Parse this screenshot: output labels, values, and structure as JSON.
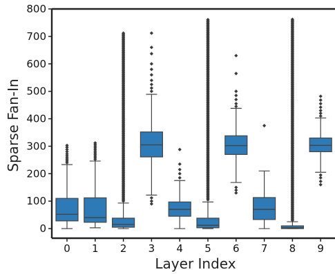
{
  "chart_data": {
    "type": "box",
    "xlabel": "Layer Index",
    "ylabel": "Sparse Fan-In",
    "ylim": [
      -35,
      800
    ],
    "yticks": [
      0,
      100,
      200,
      300,
      400,
      500,
      600,
      700,
      800
    ],
    "box_color": "#2e7ab6",
    "line_color": "#444444",
    "grid": false,
    "categories": [
      "0",
      "1",
      "2",
      "3",
      "4",
      "5",
      "6",
      "7",
      "8",
      "9"
    ],
    "boxes": [
      {
        "q1": 28,
        "median": 52,
        "q3": 110,
        "whisker_low": 0,
        "whisker_high": 233,
        "outliers": [
          240,
          246,
          252,
          258,
          265,
          272,
          280,
          288,
          296,
          303
        ]
      },
      {
        "q1": 23,
        "median": 40,
        "q3": 112,
        "whisker_low": 3,
        "whisker_high": 246,
        "outliers": [
          252,
          258,
          264,
          270,
          276,
          282,
          288,
          294,
          300,
          306,
          312
        ]
      },
      {
        "q1": 5,
        "median": 15,
        "q3": 38,
        "whisker_low": 0,
        "whisker_high": 93,
        "outliers": [
          100,
          712
        ]
      },
      {
        "q1": 261,
        "median": 305,
        "q3": 352,
        "whisker_low": 122,
        "whisker_high": 489,
        "outliers": [
          90,
          100,
          112,
          500,
          512,
          525,
          540,
          560,
          580,
          600,
          637,
          660,
          712
        ]
      },
      {
        "q1": 45,
        "median": 70,
        "q3": 97,
        "whisker_low": 0,
        "whisker_high": 175,
        "outliers": [
          185,
          200,
          215,
          235,
          288
        ]
      },
      {
        "q1": 3,
        "median": 12,
        "q3": 38,
        "whisker_low": 0,
        "whisker_high": 97,
        "outliers": [
          105,
          762
        ]
      },
      {
        "q1": 270,
        "median": 302,
        "q3": 338,
        "whisker_low": 168,
        "whisker_high": 438,
        "outliers": [
          130,
          140,
          150,
          445,
          455,
          470,
          485,
          500,
          565,
          630
        ]
      },
      {
        "q1": 33,
        "median": 70,
        "q3": 113,
        "whisker_low": 0,
        "whisker_high": 210,
        "outliers": [
          375
        ]
      },
      {
        "q1": 0,
        "median": 3,
        "q3": 10,
        "whisker_low": 0,
        "whisker_high": 25,
        "outliers": [
          30,
          765
        ]
      },
      {
        "q1": 280,
        "median": 303,
        "q3": 330,
        "whisker_low": 205,
        "whisker_high": 403,
        "outliers": [
          160,
          172,
          185,
          195,
          410,
          420,
          430,
          442,
          455,
          468,
          482
        ]
      }
    ]
  }
}
